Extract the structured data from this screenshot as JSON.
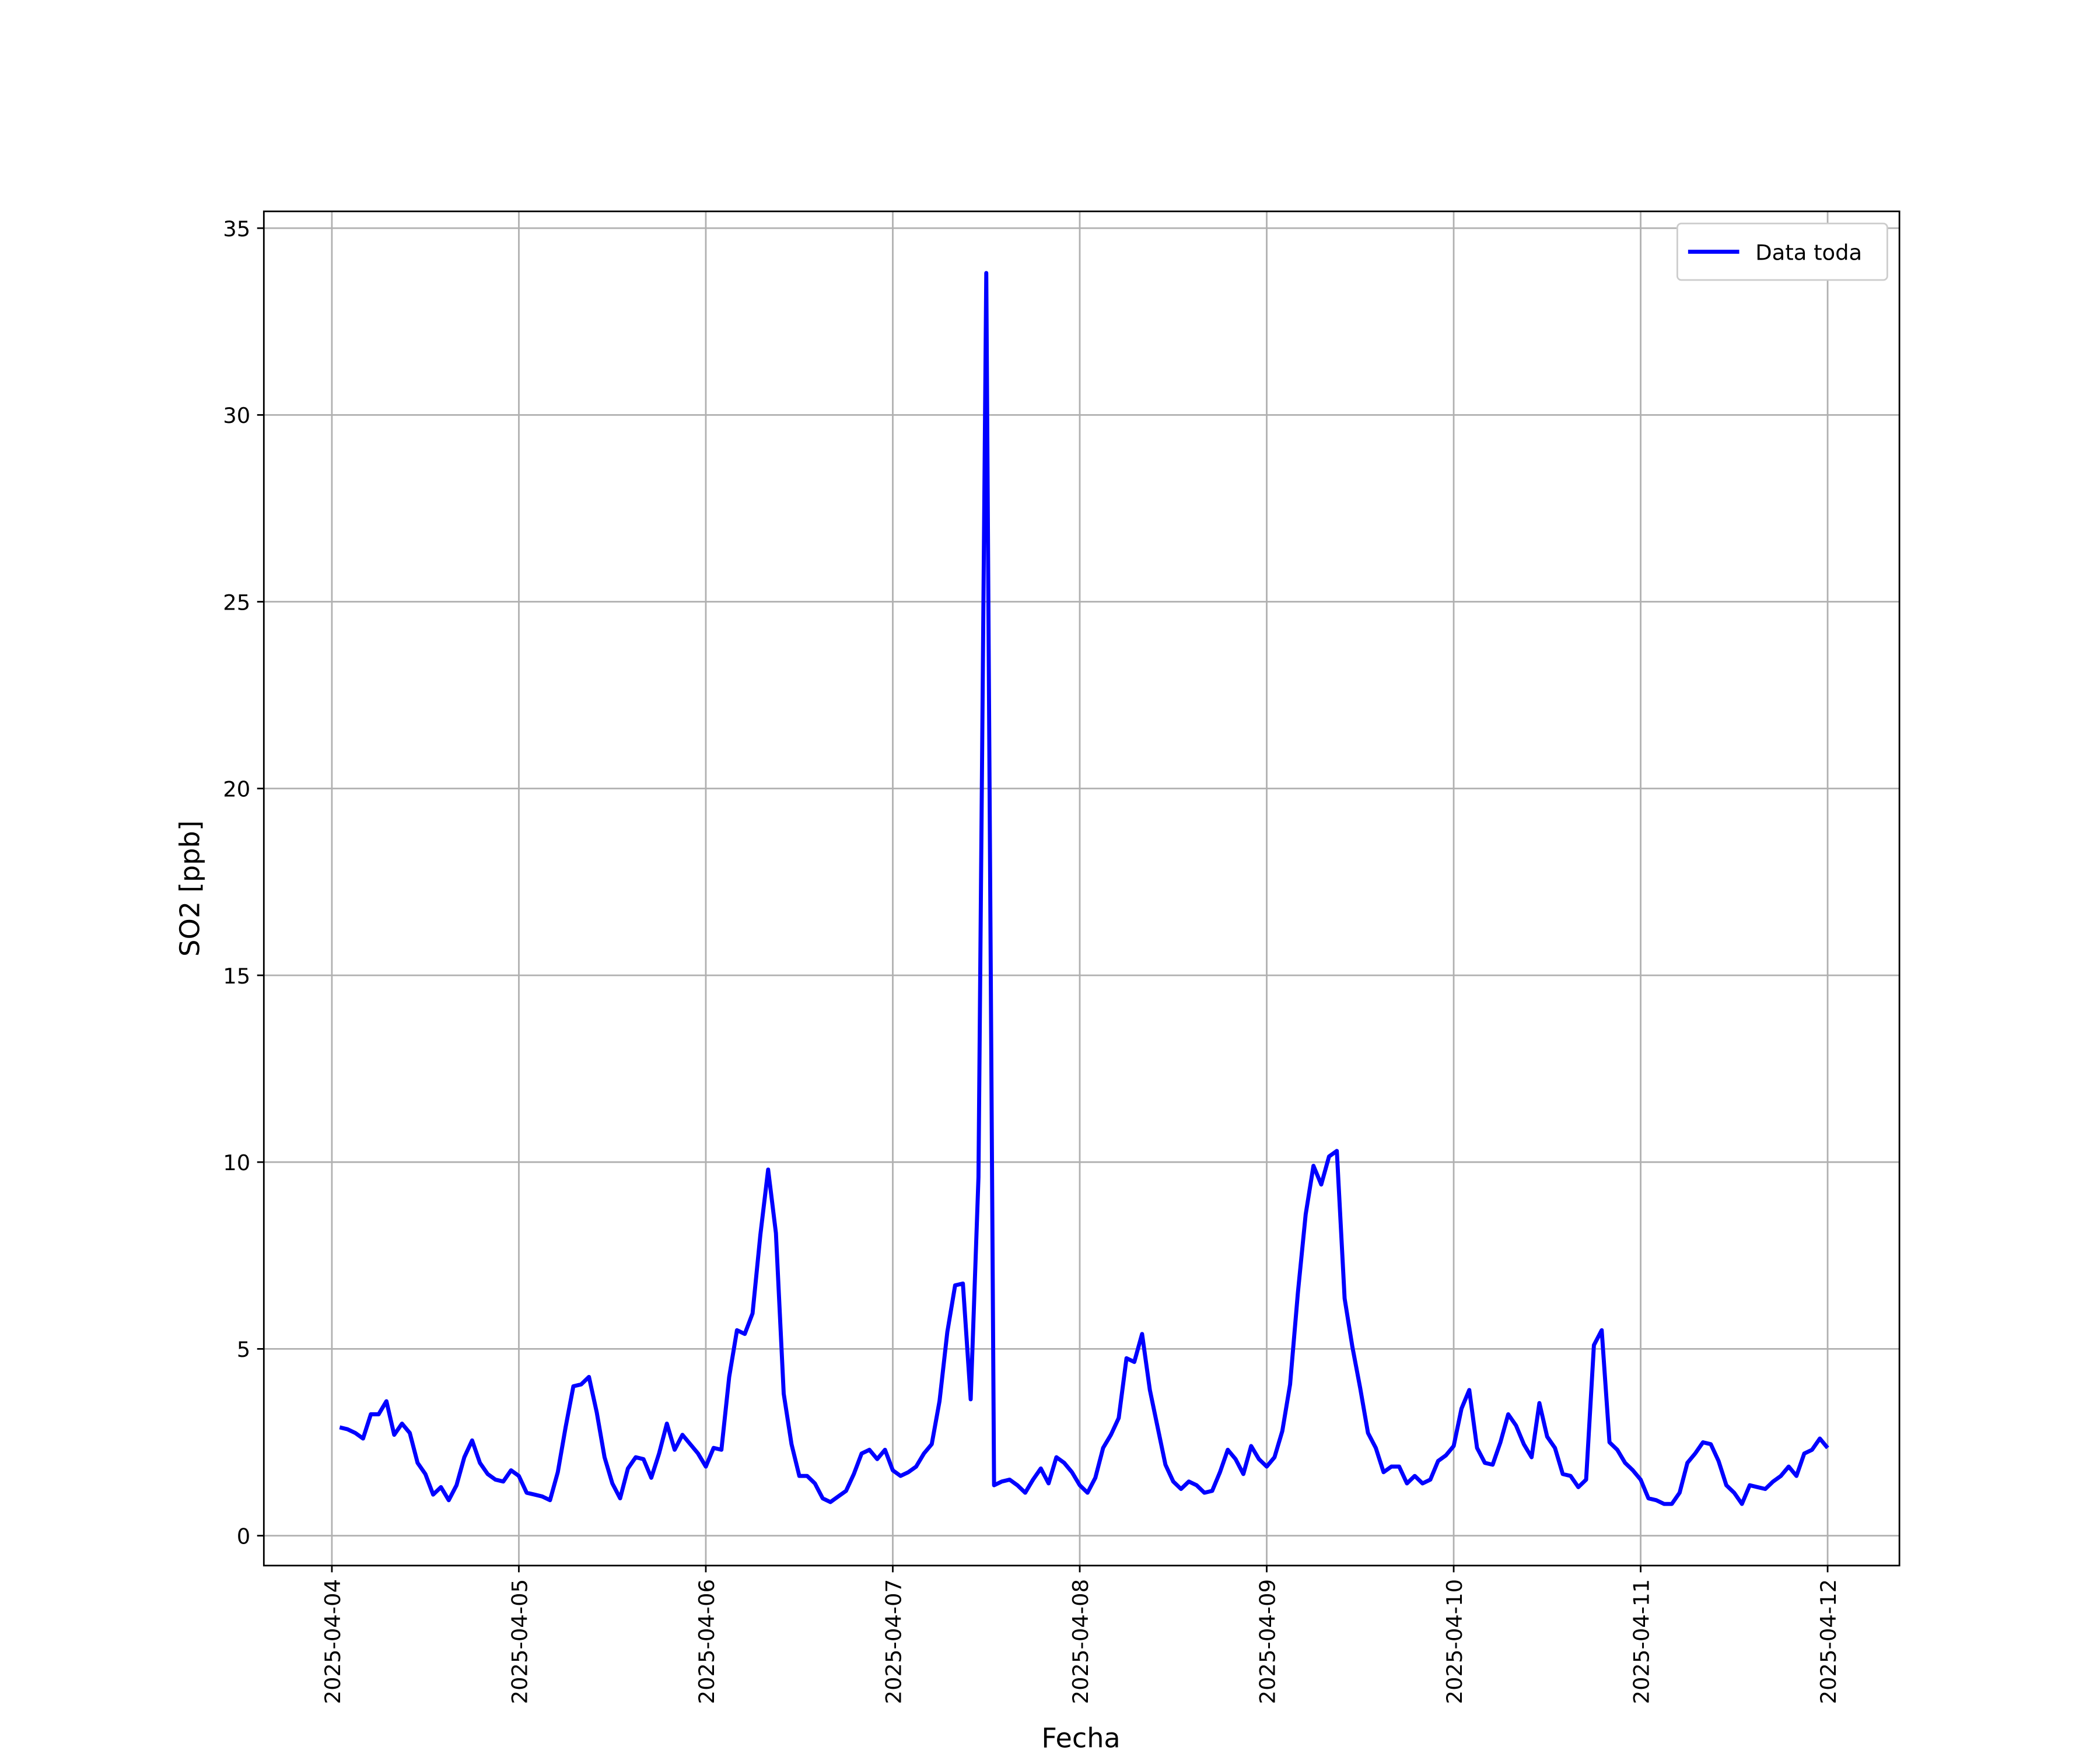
{
  "chart_data": {
    "type": "line",
    "xlabel": "Fecha",
    "ylabel": "SO2 [ppb]",
    "grid": true,
    "legend": "upper right",
    "xlim": [
      "2025-04-03 15:16",
      "2025-04-12 09:13"
    ],
    "ylim": [
      -0.8,
      35.45
    ],
    "xticks": [
      "2025-04-04",
      "2025-04-05",
      "2025-04-06",
      "2025-04-07",
      "2025-04-08",
      "2025-04-09",
      "2025-04-10",
      "2025-04-11",
      "2025-04-12"
    ],
    "yticks": [
      0,
      5,
      10,
      15,
      20,
      25,
      30,
      35
    ],
    "x": [
      "2025-04-04 01:00",
      "2025-04-04 02:00",
      "2025-04-04 03:00",
      "2025-04-04 04:00",
      "2025-04-04 05:00",
      "2025-04-04 06:00",
      "2025-04-04 07:00",
      "2025-04-04 08:00",
      "2025-04-04 09:00",
      "2025-04-04 10:00",
      "2025-04-04 11:00",
      "2025-04-04 12:00",
      "2025-04-04 13:00",
      "2025-04-04 14:00",
      "2025-04-04 15:00",
      "2025-04-04 16:00",
      "2025-04-04 17:00",
      "2025-04-04 18:00",
      "2025-04-04 19:00",
      "2025-04-04 20:00",
      "2025-04-04 21:00",
      "2025-04-04 22:00",
      "2025-04-04 23:00",
      "2025-04-05 00:00",
      "2025-04-05 01:00",
      "2025-04-05 02:00",
      "2025-04-05 03:00",
      "2025-04-05 04:00",
      "2025-04-05 05:00",
      "2025-04-05 06:00",
      "2025-04-05 07:00",
      "2025-04-05 08:00",
      "2025-04-05 09:00",
      "2025-04-05 10:00",
      "2025-04-05 11:00",
      "2025-04-05 12:00",
      "2025-04-05 13:00",
      "2025-04-05 14:00",
      "2025-04-05 15:00",
      "2025-04-05 16:00",
      "2025-04-05 17:00",
      "2025-04-05 18:00",
      "2025-04-05 19:00",
      "2025-04-05 20:00",
      "2025-04-05 21:00",
      "2025-04-05 22:00",
      "2025-04-05 23:00",
      "2025-04-06 00:00",
      "2025-04-06 01:00",
      "2025-04-06 02:00",
      "2025-04-06 03:00",
      "2025-04-06 04:00",
      "2025-04-06 05:00",
      "2025-04-06 06:00",
      "2025-04-06 07:00",
      "2025-04-06 08:00",
      "2025-04-06 09:00",
      "2025-04-06 10:00",
      "2025-04-06 11:00",
      "2025-04-06 12:00",
      "2025-04-06 13:00",
      "2025-04-06 14:00",
      "2025-04-06 15:00",
      "2025-04-06 16:00",
      "2025-04-06 17:00",
      "2025-04-06 18:00",
      "2025-04-06 19:00",
      "2025-04-06 20:00",
      "2025-04-06 21:00",
      "2025-04-06 22:00",
      "2025-04-06 23:00",
      "2025-04-07 00:00",
      "2025-04-07 01:00",
      "2025-04-07 02:00",
      "2025-04-07 03:00",
      "2025-04-07 04:00",
      "2025-04-07 05:00",
      "2025-04-07 06:00",
      "2025-04-07 07:00",
      "2025-04-07 08:00",
      "2025-04-07 09:00",
      "2025-04-07 10:00",
      "2025-04-07 11:00",
      "2025-04-07 12:00",
      "2025-04-07 13:00",
      "2025-04-07 14:00",
      "2025-04-07 15:00",
      "2025-04-07 16:00",
      "2025-04-07 17:00",
      "2025-04-07 18:00",
      "2025-04-07 19:00",
      "2025-04-07 20:00",
      "2025-04-07 21:00",
      "2025-04-07 22:00",
      "2025-04-07 23:00",
      "2025-04-08 00:00",
      "2025-04-08 01:00",
      "2025-04-08 02:00",
      "2025-04-08 03:00",
      "2025-04-08 04:00",
      "2025-04-08 05:00",
      "2025-04-08 06:00",
      "2025-04-08 07:00",
      "2025-04-08 08:00",
      "2025-04-08 09:00",
      "2025-04-08 10:00",
      "2025-04-08 11:00",
      "2025-04-08 12:00",
      "2025-04-08 13:00",
      "2025-04-08 14:00",
      "2025-04-08 15:00",
      "2025-04-08 16:00",
      "2025-04-08 17:00",
      "2025-04-08 18:00",
      "2025-04-08 19:00",
      "2025-04-08 20:00",
      "2025-04-08 21:00",
      "2025-04-08 22:00",
      "2025-04-08 23:00",
      "2025-04-09 00:00",
      "2025-04-09 01:00",
      "2025-04-09 02:00",
      "2025-04-09 03:00",
      "2025-04-09 04:00",
      "2025-04-09 05:00",
      "2025-04-09 06:00",
      "2025-04-09 07:00",
      "2025-04-09 08:00",
      "2025-04-09 09:00",
      "2025-04-09 10:00",
      "2025-04-09 11:00",
      "2025-04-09 12:00",
      "2025-04-09 13:00",
      "2025-04-09 14:00",
      "2025-04-09 15:00",
      "2025-04-09 16:00",
      "2025-04-09 17:00",
      "2025-04-09 18:00",
      "2025-04-09 19:00",
      "2025-04-09 20:00",
      "2025-04-09 21:00",
      "2025-04-09 22:00",
      "2025-04-09 23:00",
      "2025-04-10 00:00",
      "2025-04-10 01:00",
      "2025-04-10 02:00",
      "2025-04-10 03:00",
      "2025-04-10 04:00",
      "2025-04-10 05:00",
      "2025-04-10 06:00",
      "2025-04-10 07:00",
      "2025-04-10 08:00",
      "2025-04-10 09:00",
      "2025-04-10 10:00",
      "2025-04-10 11:00",
      "2025-04-10 12:00",
      "2025-04-10 13:00",
      "2025-04-10 14:00",
      "2025-04-10 15:00",
      "2025-04-10 16:00",
      "2025-04-10 17:00",
      "2025-04-10 18:00",
      "2025-04-10 19:00",
      "2025-04-10 20:00",
      "2025-04-10 21:00",
      "2025-04-10 22:00",
      "2025-04-10 23:00",
      "2025-04-11 00:00",
      "2025-04-11 01:00",
      "2025-04-11 02:00",
      "2025-04-11 03:00",
      "2025-04-11 04:00",
      "2025-04-11 05:00",
      "2025-04-11 06:00",
      "2025-04-11 07:00",
      "2025-04-11 08:00",
      "2025-04-11 09:00",
      "2025-04-11 10:00",
      "2025-04-11 11:00",
      "2025-04-11 12:00",
      "2025-04-11 13:00",
      "2025-04-11 14:00",
      "2025-04-11 15:00",
      "2025-04-11 16:00",
      "2025-04-11 17:00",
      "2025-04-11 18:00",
      "2025-04-11 19:00",
      "2025-04-11 20:00",
      "2025-04-11 21:00",
      "2025-04-11 22:00",
      "2025-04-11 23:00",
      "2025-04-12 00:00"
    ],
    "series": [
      {
        "name": "Data toda",
        "color": "#0000ff",
        "values": [
          2.9,
          2.85,
          2.75,
          2.6,
          3.25,
          3.25,
          3.6,
          2.7,
          3.0,
          2.75,
          1.95,
          1.65,
          1.1,
          1.3,
          0.95,
          1.35,
          2.1,
          2.55,
          1.95,
          1.65,
          1.5,
          1.45,
          1.75,
          1.6,
          1.15,
          1.1,
          1.05,
          0.95,
          1.7,
          2.9,
          4.0,
          4.05,
          4.25,
          3.3,
          2.1,
          1.4,
          1.0,
          1.8,
          2.1,
          2.05,
          1.55,
          2.2,
          3.0,
          2.3,
          2.7,
          2.45,
          2.2,
          1.85,
          2.35,
          2.3,
          4.25,
          5.5,
          5.4,
          5.95,
          8.05,
          9.8,
          8.1,
          3.8,
          2.45,
          1.6,
          1.6,
          1.4,
          1.0,
          0.9,
          1.05,
          1.2,
          1.65,
          2.2,
          2.3,
          2.05,
          2.3,
          1.75,
          1.6,
          1.7,
          1.85,
          2.2,
          2.45,
          3.6,
          5.45,
          6.7,
          6.75,
          3.65,
          9.6,
          33.8,
          1.35,
          1.45,
          1.5,
          1.35,
          1.15,
          1.5,
          1.8,
          1.4,
          2.1,
          1.95,
          1.7,
          1.35,
          1.15,
          1.55,
          2.35,
          2.7,
          3.15,
          4.75,
          4.65,
          5.4,
          3.9,
          2.9,
          1.9,
          1.45,
          1.25,
          1.45,
          1.35,
          1.15,
          1.2,
          1.7,
          2.3,
          2.05,
          1.65,
          2.4,
          2.05,
          1.85,
          2.1,
          2.8,
          4.05,
          6.5,
          8.6,
          9.9,
          9.4,
          10.15,
          10.3,
          6.35,
          5.05,
          3.95,
          2.75,
          2.35,
          1.7,
          1.85,
          1.85,
          1.4,
          1.6,
          1.4,
          1.5,
          2.0,
          2.15,
          2.4,
          3.4,
          3.9,
          2.35,
          1.95,
          1.9,
          2.5,
          3.25,
          2.95,
          2.45,
          2.1,
          3.55,
          2.65,
          2.35,
          1.65,
          1.6,
          1.3,
          1.5,
          5.1,
          5.5,
          2.5,
          2.3,
          1.95,
          1.75,
          1.5,
          1.0,
          0.95,
          0.85,
          0.85,
          1.15,
          1.95,
          2.2,
          2.5,
          2.45,
          2.0,
          1.35,
          1.15,
          0.85,
          1.35,
          1.3,
          1.25,
          1.45,
          1.6,
          1.85,
          1.6,
          2.2,
          2.3,
          2.6,
          2.35
        ]
      }
    ]
  }
}
